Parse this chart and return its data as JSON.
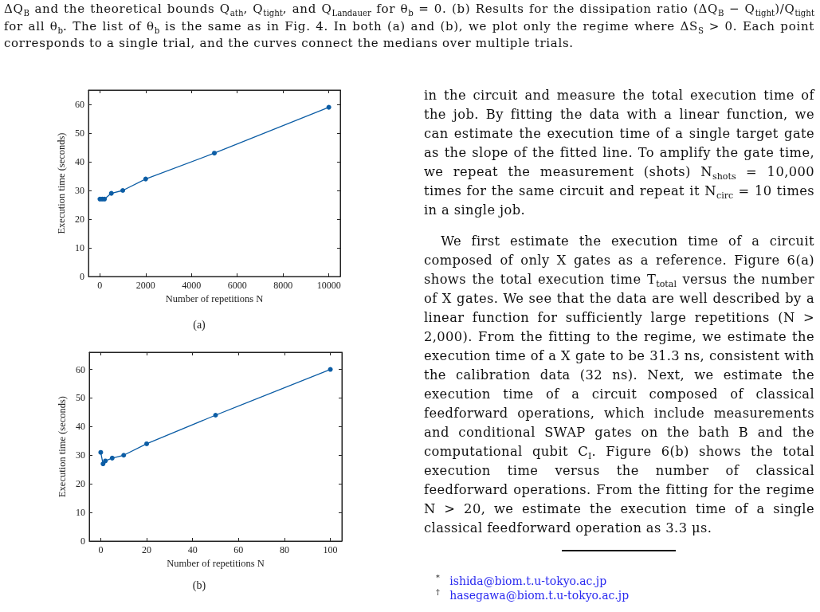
{
  "chart_data": [
    {
      "type": "other",
      "annotations": [
        "ΔQ$_{B}$ and the theoretical bounds Q$_{ath}$, Q$_{tight}$, and Q$_{Landauer}$ for θ$_{b}$ = 0. (b) Results for the dissipation ratio (ΔQ$_{B}$ − Q$_{tight}$)/Q$_{tight}$ for all θ$_{b}$. The list of θ$_{b}$ is the same as in Fig. 4. In both (a) and (b), we plot only the regime where ΔS$_{S}$ > 0. Each point corresponds to a single trial, and the curves connect the medians over multiple trials."
      ]
    },
    {
      "type": "line",
      "title": "(a)",
      "xlabel": "Number of repetitions N",
      "ylabel": "Execution time (seconds)",
      "x": [
        0,
        100,
        200,
        500,
        1000,
        2000,
        5000,
        10000
      ],
      "series": [
        {
          "color": "#0c5da5",
          "values": [
            27,
            27,
            27,
            29,
            30,
            34,
            43,
            59
          ]
        }
      ],
      "xlim": [
        -500,
        10500
      ],
      "xticks": [
        0,
        2000,
        4000,
        6000,
        8000,
        10000
      ],
      "ylim": [
        0,
        65
      ],
      "yticks": [
        0,
        10,
        20,
        30,
        40,
        50,
        60
      ],
      "marker": "circle",
      "line_style": "solid"
    },
    {
      "type": "line",
      "title": "(b)",
      "xlabel": "Number of repetitions N",
      "ylabel": "Execution time (seconds)",
      "x": [
        0,
        1,
        2,
        5,
        10,
        20,
        50,
        100
      ],
      "series": [
        {
          "color": "#0c5da5",
          "values": [
            31,
            27,
            28,
            29,
            30,
            34,
            44,
            60
          ]
        }
      ],
      "xlim": [
        -5,
        105
      ],
      "xticks": [
        0,
        20,
        40,
        60,
        80,
        100
      ],
      "ylim": [
        0,
        66
      ],
      "yticks": [
        0,
        10,
        20,
        30,
        40,
        50,
        60
      ],
      "marker": "circle",
      "line_style": "solid"
    },
    {
      "type": "other",
      "annotations": [
        "in the circuit and measure the total execution time of the job. By fitting the data with a linear function, we can estimate the execution time of a single target gate as the slope of the fitted line. To amplify the gate time, we repeat the measurement (shots) N$_{shots}$ = 10,000 times for the same circuit and repeat it N$_{circ}$ = 10 times in a single job.",
        "We first estimate the execution time of a circuit composed of only X gates as a reference. Figure 6(a) shows the total execution time T$_{total}$ versus the number of X gates. We see that the data are well described by a linear function for sufficiently large repetitions (N > 2,000). From the fitting to the regime, we estimate the execution time of a X gate to be 31.3 ns, consistent with the calibration data (32 ns). Next, we estimate the execution time of a circuit composed of classical feedforward operations, which include measurements and conditional SWAP gates on the bath B and the computational qubit C$_{I}$. Figure 6(b) shows the total execution time versus the number of classical feedforward operations. From the fitting for the regime N > 20, we estimate the execution time of a single classical feedforward operation as 3.3 μs."
      ]
    },
    {
      "type": "other",
      "annotations": [
        "$^{*}$ ishida@biom.t.u-tokyo.ac.jp",
        "$^{†}$ hasegawa@biom.t.u-tokyo.ac.jp"
      ]
    }
  ]
}
